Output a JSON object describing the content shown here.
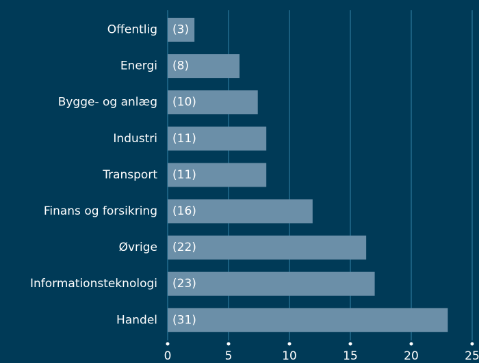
{
  "chart_data": {
    "type": "hbar",
    "categories": [
      "Offentlig",
      "Energi",
      "Bygge- og anlæg",
      "Industri",
      "Transport",
      "Finans og forsikring",
      "Øvrige",
      "Informationsteknologi",
      "Handel"
    ],
    "values": [
      2.2,
      5.9,
      7.4,
      8.1,
      8.1,
      11.9,
      16.3,
      17.0,
      23.0
    ],
    "annotations": [
      "(3)",
      "(8)",
      "(10)",
      "(11)",
      "(11)",
      "(16)",
      "(22)",
      "(23)",
      "(31)"
    ],
    "color": "#6b8fa8",
    "xlim": [
      0,
      25
    ],
    "xticks": [
      0,
      5,
      10,
      15,
      20,
      25
    ],
    "grid": true
  }
}
